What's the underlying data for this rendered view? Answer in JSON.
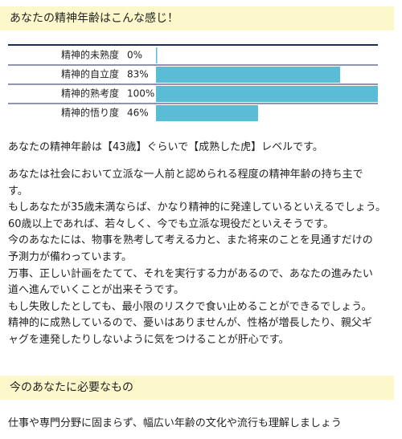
{
  "header": {
    "title": "あなたの精神年齢はこんな感じ！"
  },
  "chart_data": {
    "type": "bar",
    "orientation": "horizontal",
    "categories": [
      "精神的未熟度",
      "精神的自立度",
      "精神的熟考度",
      "精神的悟り度"
    ],
    "values": [
      0,
      83,
      100,
      46
    ],
    "value_labels": [
      "0%",
      "83%",
      "100%",
      "46%"
    ],
    "xlim": [
      0,
      100
    ],
    "color": "#5bbcd8"
  },
  "result": "あなたの精神年齢は【43歳】ぐらいで【成熟した虎】レベルです。",
  "description": {
    "lines": [
      "あなたは社会において立派な一人前と認められる程度の精神年齢の持ち主で",
      "す。",
      "もしあなたが35歳未満ならば、かなり精神的に発達しているといえるでしょう。",
      "60歳以上であれば、若々しく、今でも立派な現役だといえそうです。",
      "今のあなたには、物事を熟考して考える力と、また将来のことを見通すだけの",
      "予測力が備わっています。",
      "万事、正しい計画をたてて、それを実行する力があるので、あなたの進みたい",
      "道へ進んでいくことが出来そうです。",
      "もし失敗したとしても、最小限のリスクで食い止めることができるでしょう。",
      "精神的に成熟しているので、憂いはありませんが、性格が増長したり、親父ギ",
      "ャグを連発したりしないように気をつけることが肝心です。"
    ]
  },
  "section": {
    "title": "今のあなたに必要なもの",
    "text": "仕事や専門分野に固まらず、幅広い年齢の文化や流行も理解しましょう"
  }
}
